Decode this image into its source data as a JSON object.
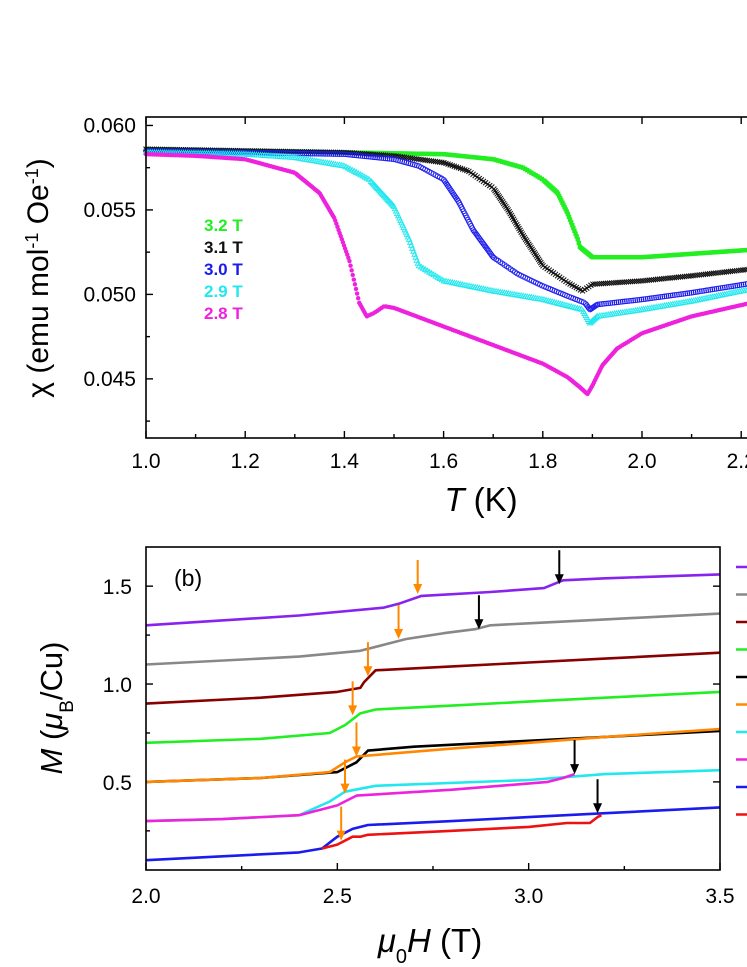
{
  "chart_data": [
    {
      "type": "scatter",
      "title": "",
      "xlabel": "T (K)",
      "xlabel_parts": {
        "var": "T",
        "unit": " (K)"
      },
      "ylabel": "χ (emu mol-1 Oe-1)",
      "ylabel_parts": {
        "pre": "χ (emu mol",
        "sup1": "-1",
        "mid": " Oe",
        "sup2": "-1",
        "post": ")"
      },
      "xlim": [
        1.0,
        2.25
      ],
      "ylim": [
        0.0415,
        0.0605
      ],
      "xticks": [
        1.0,
        1.2,
        1.4,
        1.6,
        1.8,
        2.0,
        2.2
      ],
      "xtick_labels": [
        "1.0",
        "1.2",
        "1.4",
        "1.6",
        "1.8",
        "2.0",
        "2.2"
      ],
      "yticks": [
        0.045,
        0.05,
        0.055,
        0.06
      ],
      "ytick_labels": [
        "0.045",
        "0.050",
        "0.055",
        "0.060"
      ],
      "legend_position": "left",
      "grid": false,
      "series": [
        {
          "name": "3.2 T",
          "color": "#22ee22",
          "marker": "square",
          "x": [
            1.0,
            1.2,
            1.4,
            1.6,
            1.7,
            1.76,
            1.8,
            1.83,
            1.85,
            1.87,
            1.875,
            1.9,
            2.0,
            2.1,
            2.25
          ],
          "y": [
            0.0586,
            0.0585,
            0.0584,
            0.0583,
            0.058,
            0.0575,
            0.0568,
            0.056,
            0.0548,
            0.0533,
            0.0528,
            0.0522,
            0.0522,
            0.0524,
            0.0527
          ]
        },
        {
          "name": "3.1 T",
          "color": "#111111",
          "marker": "x",
          "x": [
            1.0,
            1.2,
            1.4,
            1.5,
            1.6,
            1.65,
            1.7,
            1.73,
            1.76,
            1.8,
            1.85,
            1.88,
            1.9,
            2.0,
            2.1,
            2.25
          ],
          "y": [
            0.0586,
            0.0585,
            0.0584,
            0.0582,
            0.0578,
            0.0573,
            0.0563,
            0.055,
            0.0535,
            0.0517,
            0.0507,
            0.0502,
            0.0506,
            0.0508,
            0.0511,
            0.0516
          ]
        },
        {
          "name": "3.0 T",
          "color": "#1b1bee",
          "marker": "circle",
          "x": [
            1.0,
            1.2,
            1.4,
            1.5,
            1.55,
            1.6,
            1.63,
            1.66,
            1.7,
            1.75,
            1.8,
            1.85,
            1.885,
            1.895,
            1.91,
            2.0,
            2.1,
            2.25
          ],
          "y": [
            0.0585,
            0.0584,
            0.0583,
            0.058,
            0.0576,
            0.0568,
            0.0555,
            0.0538,
            0.0522,
            0.0512,
            0.0505,
            0.0499,
            0.0495,
            0.0491,
            0.0494,
            0.0497,
            0.0501,
            0.0508
          ]
        },
        {
          "name": "2.9 T",
          "color": "#22e8ee",
          "marker": "triangle",
          "x": [
            1.0,
            1.2,
            1.3,
            1.4,
            1.45,
            1.5,
            1.53,
            1.55,
            1.6,
            1.7,
            1.8,
            1.88,
            1.895,
            1.91,
            2.0,
            2.1,
            2.25
          ],
          "y": [
            0.0584,
            0.0583,
            0.0581,
            0.0576,
            0.0568,
            0.0552,
            0.0533,
            0.0517,
            0.0508,
            0.0502,
            0.0497,
            0.0491,
            0.0483,
            0.0487,
            0.0491,
            0.0496,
            0.0505
          ]
        },
        {
          "name": "2.8 T",
          "color": "#ee22dd",
          "marker": "circle",
          "x": [
            1.0,
            1.1,
            1.2,
            1.3,
            1.35,
            1.38,
            1.41,
            1.43,
            1.445,
            1.46,
            1.48,
            1.5,
            1.6,
            1.7,
            1.8,
            1.85,
            1.875,
            1.89,
            1.9,
            1.92,
            1.95,
            2.0,
            2.1,
            2.25
          ],
          "y": [
            0.0583,
            0.0582,
            0.058,
            0.0572,
            0.056,
            0.0545,
            0.052,
            0.0495,
            0.0487,
            0.0489,
            0.0493,
            0.0492,
            0.0481,
            0.047,
            0.0459,
            0.0451,
            0.0445,
            0.0441,
            0.0446,
            0.0458,
            0.0468,
            0.0477,
            0.0487,
            0.0497
          ]
        }
      ]
    },
    {
      "type": "line",
      "title": "",
      "panel_label": "(b)",
      "xlabel": "μ0H (T)",
      "xlabel_parts": {
        "mu": "μ",
        "sub": "0",
        "var": "H",
        "unit": " (T)"
      },
      "ylabel": "M (μB/Cu)",
      "ylabel_parts": {
        "var": "M",
        "open": " (",
        "mu": "μ",
        "sub": "B",
        "unit": "/Cu)"
      },
      "xlim": [
        2.0,
        3.5
      ],
      "ylim": [
        0.05,
        1.7
      ],
      "xticks": [
        2.0,
        2.5,
        3.0,
        3.5
      ],
      "xtick_labels": [
        "2.0",
        "2.5",
        "3.0",
        "3.5"
      ],
      "yticks": [
        0.5,
        1.0,
        1.5
      ],
      "ytick_labels": [
        "0.5",
        "1.0",
        "1.5"
      ],
      "legend_position": "right",
      "grid": false,
      "series": [
        {
          "color": "#8822ee",
          "x": [
            2.0,
            2.4,
            2.62,
            2.66,
            2.72,
            2.9,
            3.04,
            3.09,
            3.2,
            3.5
          ],
          "y": [
            1.3,
            1.35,
            1.39,
            1.41,
            1.45,
            1.47,
            1.49,
            1.53,
            1.54,
            1.56
          ]
        },
        {
          "color": "#888888",
          "x": [
            2.0,
            2.4,
            2.56,
            2.62,
            2.68,
            2.78,
            2.86,
            2.9,
            3.0,
            3.2,
            3.5
          ],
          "y": [
            1.1,
            1.14,
            1.17,
            1.2,
            1.23,
            1.26,
            1.28,
            1.3,
            1.31,
            1.33,
            1.36
          ]
        },
        {
          "color": "#880000",
          "x": [
            2.0,
            2.3,
            2.5,
            2.56,
            2.57,
            2.59,
            2.6,
            2.8,
            3.0,
            3.2,
            3.5
          ],
          "y": [
            0.9,
            0.93,
            0.96,
            0.98,
            1.01,
            1.05,
            1.07,
            1.09,
            1.11,
            1.13,
            1.16
          ]
        },
        {
          "color": "#22ee22",
          "x": [
            2.0,
            2.3,
            2.48,
            2.52,
            2.56,
            2.6,
            2.8,
            3.0,
            3.2,
            3.5
          ],
          "y": [
            0.7,
            0.72,
            0.75,
            0.79,
            0.85,
            0.87,
            0.89,
            0.91,
            0.93,
            0.96
          ]
        },
        {
          "color": "#000000",
          "x": [
            2.0,
            2.3,
            2.5,
            2.55,
            2.58,
            2.7,
            3.0,
            3.2,
            3.5
          ],
          "y": [
            0.5,
            0.52,
            0.55,
            0.6,
            0.66,
            0.68,
            0.71,
            0.73,
            0.76
          ]
        },
        {
          "color": "#ff8800",
          "x": [
            2.0,
            2.3,
            2.48,
            2.52,
            2.55,
            2.8,
            3.0,
            3.2,
            3.5
          ],
          "y": [
            0.5,
            0.52,
            0.55,
            0.6,
            0.63,
            0.67,
            0.7,
            0.73,
            0.77
          ]
        },
        {
          "color": "#22e8ee",
          "x": [
            2.0,
            2.2,
            2.4,
            2.48,
            2.52,
            2.6,
            3.0,
            3.2,
            3.5
          ],
          "y": [
            0.3,
            0.31,
            0.33,
            0.4,
            0.45,
            0.48,
            0.51,
            0.54,
            0.56
          ]
        },
        {
          "color": "#ee22dd",
          "x": [
            2.0,
            2.2,
            2.4,
            2.5,
            2.55,
            2.8,
            3.05,
            3.09,
            3.12
          ],
          "y": [
            0.3,
            0.31,
            0.33,
            0.38,
            0.43,
            0.46,
            0.5,
            0.52,
            0.54
          ]
        },
        {
          "color": "#1b1bee",
          "x": [
            2.0,
            2.2,
            2.4,
            2.46,
            2.5,
            2.54,
            2.58,
            2.8,
            3.0,
            3.2,
            3.5
          ],
          "y": [
            0.1,
            0.12,
            0.14,
            0.16,
            0.22,
            0.26,
            0.28,
            0.3,
            0.32,
            0.34,
            0.37
          ]
        },
        {
          "color": "#ee1111",
          "x": [
            2.46,
            2.5,
            2.54,
            2.56,
            2.58,
            2.8,
            3.0,
            3.1,
            3.16,
            3.18,
            3.19
          ],
          "y": [
            0.16,
            0.18,
            0.22,
            0.22,
            0.23,
            0.25,
            0.27,
            0.29,
            0.29,
            0.32,
            0.33
          ]
        }
      ],
      "arrows": [
        {
          "x": 2.71,
          "y": 1.46,
          "color": "#ff8800"
        },
        {
          "x": 2.66,
          "y": 1.23,
          "color": "#ff8800"
        },
        {
          "x": 2.58,
          "y": 1.04,
          "color": "#ff8800"
        },
        {
          "x": 2.54,
          "y": 0.84,
          "color": "#ff8800"
        },
        {
          "x": 2.55,
          "y": 0.63,
          "color": "#ff8800"
        },
        {
          "x": 2.52,
          "y": 0.44,
          "color": "#ff8800"
        },
        {
          "x": 2.51,
          "y": 0.2,
          "color": "#ff8800"
        },
        {
          "x": 3.08,
          "y": 1.51,
          "color": "#000000"
        },
        {
          "x": 2.87,
          "y": 1.28,
          "color": "#000000"
        },
        {
          "x": 3.12,
          "y": 0.54,
          "color": "#000000"
        },
        {
          "x": 3.18,
          "y": 0.34,
          "color": "#000000"
        }
      ]
    }
  ]
}
